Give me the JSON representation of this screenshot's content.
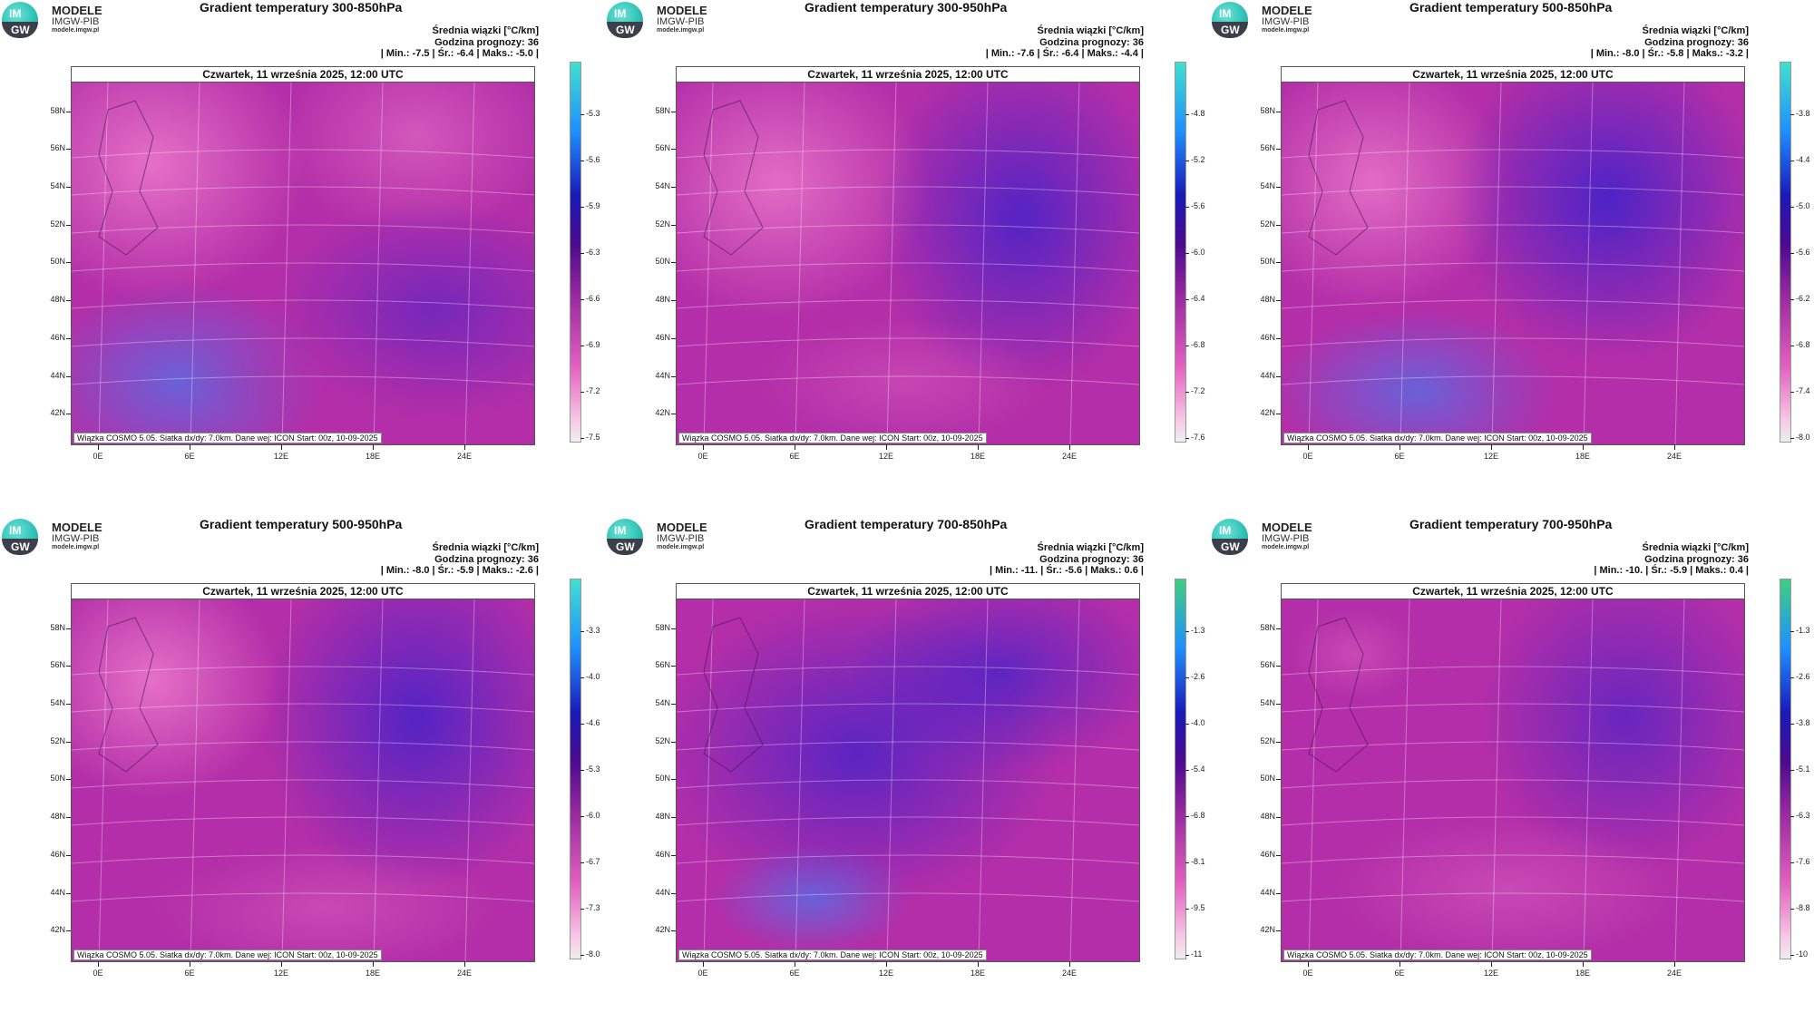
{
  "logo": {
    "line1": "MODELE",
    "line2": "IMGW-PIB",
    "line3": "modele.imgw.pl",
    "im": "IM",
    "gw": "GW"
  },
  "common": {
    "date_header": "Czwartek, 11 września 2025, 12:00 UTC",
    "footer": "Wiązka COSMO 5.05. Siatka dx/dy: 7.0km. Dane wej: ICON Start: 00z, 10-09-2025",
    "stat_line1": "Średnia wiązki [°C/km]",
    "stat_line2": "Godzina prognozy: 36",
    "lat_labels": [
      "58N",
      "56N",
      "54N",
      "52N",
      "50N",
      "48N",
      "46N",
      "44N",
      "42N"
    ],
    "lon_labels": [
      "0E",
      "6E",
      "12E",
      "18E",
      "24E"
    ]
  },
  "panels": [
    {
      "title": "Gradient temperatury 300-850hPa",
      "stats": "| Min.:   -7.5 | Śr.:   -6.4 | Maks.:   -5.0 |",
      "cbar_ticks": [
        "-5.3",
        "-5.6",
        "-5.9",
        "-6.3",
        "-6.6",
        "-6.9",
        "-7.2",
        "-7.5"
      ],
      "cbar_top": "#40e0d0"
    },
    {
      "title": "Gradient temperatury 300-950hPa",
      "stats": "| Min.:   -7.6 | Śr.:   -6.4 | Maks.:   -4.4 |",
      "cbar_ticks": [
        "-4.8",
        "-5.2",
        "-5.6",
        "-6.0",
        "-6.4",
        "-6.8",
        "-7.2",
        "-7.6"
      ],
      "cbar_top": "#40e0d0"
    },
    {
      "title": "Gradient temperatury 500-850hPa",
      "stats": "| Min.:   -8.0 | Śr.:   -5.8 | Maks.:   -3.2 |",
      "cbar_ticks": [
        "-3.8",
        "-4.4",
        "-5.0",
        "-5.6",
        "-6.2",
        "-6.8",
        "-7.4",
        "-8.0"
      ],
      "cbar_top": "#40e0d0"
    },
    {
      "title": "Gradient temperatury 500-950hPa",
      "stats": "| Min.:   -8.0 | Śr.:   -5.9 | Maks.:   -2.6 |",
      "cbar_ticks": [
        "-3.3",
        "-4.0",
        "-4.6",
        "-5.3",
        "-6.0",
        "-6.7",
        "-7.3",
        "-8.0"
      ],
      "cbar_top": "#40e0d0"
    },
    {
      "title": "Gradient temperatury 700-850hPa",
      "stats": "| Min.:   -11. | Śr.:   -5.6 | Maks.:   0.6 |",
      "cbar_ticks": [
        "-1.3",
        "-2.6",
        "-4.0",
        "-5.4",
        "-6.8",
        "-8.1",
        "-9.5",
        "-11"
      ],
      "cbar_top": "#3fcf7f"
    },
    {
      "title": "Gradient temperatury 700-950hPa",
      "stats": "| Min.:   -10. | Śr.:   -5.9 | Maks.:   0.4 |",
      "cbar_ticks": [
        "-1.3",
        "-2.6",
        "-3.8",
        "-5.1",
        "-6.3",
        "-7.6",
        "-8.8",
        "-10"
      ],
      "cbar_top": "#3fcf7f"
    }
  ],
  "colors": {
    "pink": "#e874c8",
    "magenta": "#b32ea8",
    "purple": "#6a1b9a",
    "blue": "#2a1fd0",
    "lightblue": "#2e8bff"
  }
}
